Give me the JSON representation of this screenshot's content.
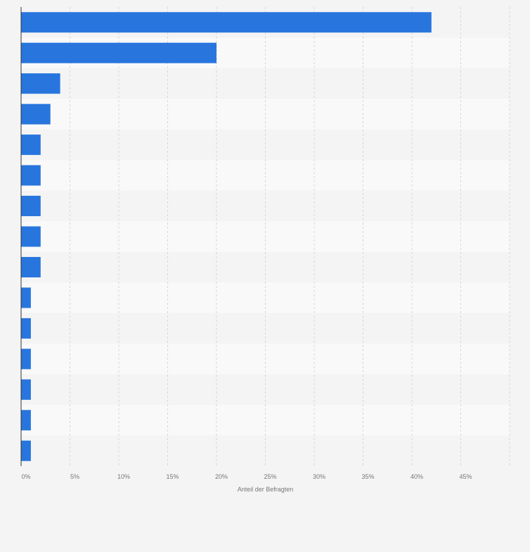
{
  "chart_data": {
    "type": "bar",
    "orientation": "horizontal",
    "categories": [
      "",
      "",
      "",
      "",
      "",
      "",
      "",
      "",
      "",
      "",
      "",
      "",
      "",
      "",
      ""
    ],
    "values": [
      42,
      20,
      4,
      3,
      2,
      2,
      2,
      2,
      2,
      1,
      1,
      1,
      1,
      1,
      1
    ],
    "xlabel": "Anteil der Befragten",
    "xlim": [
      0,
      50
    ],
    "xticks": [
      "0%",
      "5%",
      "10%",
      "15%",
      "20%",
      "25%",
      "30%",
      "35%",
      "40%",
      "45%"
    ],
    "tick_values": [
      0,
      5,
      10,
      15,
      20,
      25,
      30,
      35,
      40,
      45
    ],
    "grid": true,
    "bar_color": "#2876dd"
  }
}
